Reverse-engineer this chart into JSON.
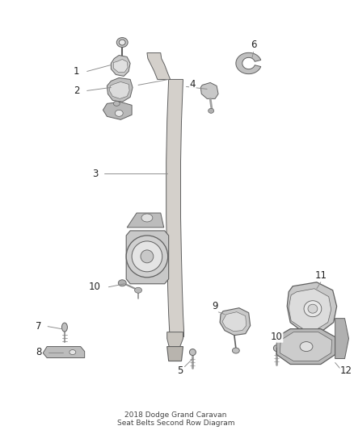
{
  "title": "2018 Dodge Grand Caravan\nSeat Belts Second Row Diagram",
  "background_color": "#ffffff",
  "line_color": "#606060",
  "text_color": "#222222",
  "fig_width": 4.38,
  "fig_height": 5.33,
  "dpi": 100
}
